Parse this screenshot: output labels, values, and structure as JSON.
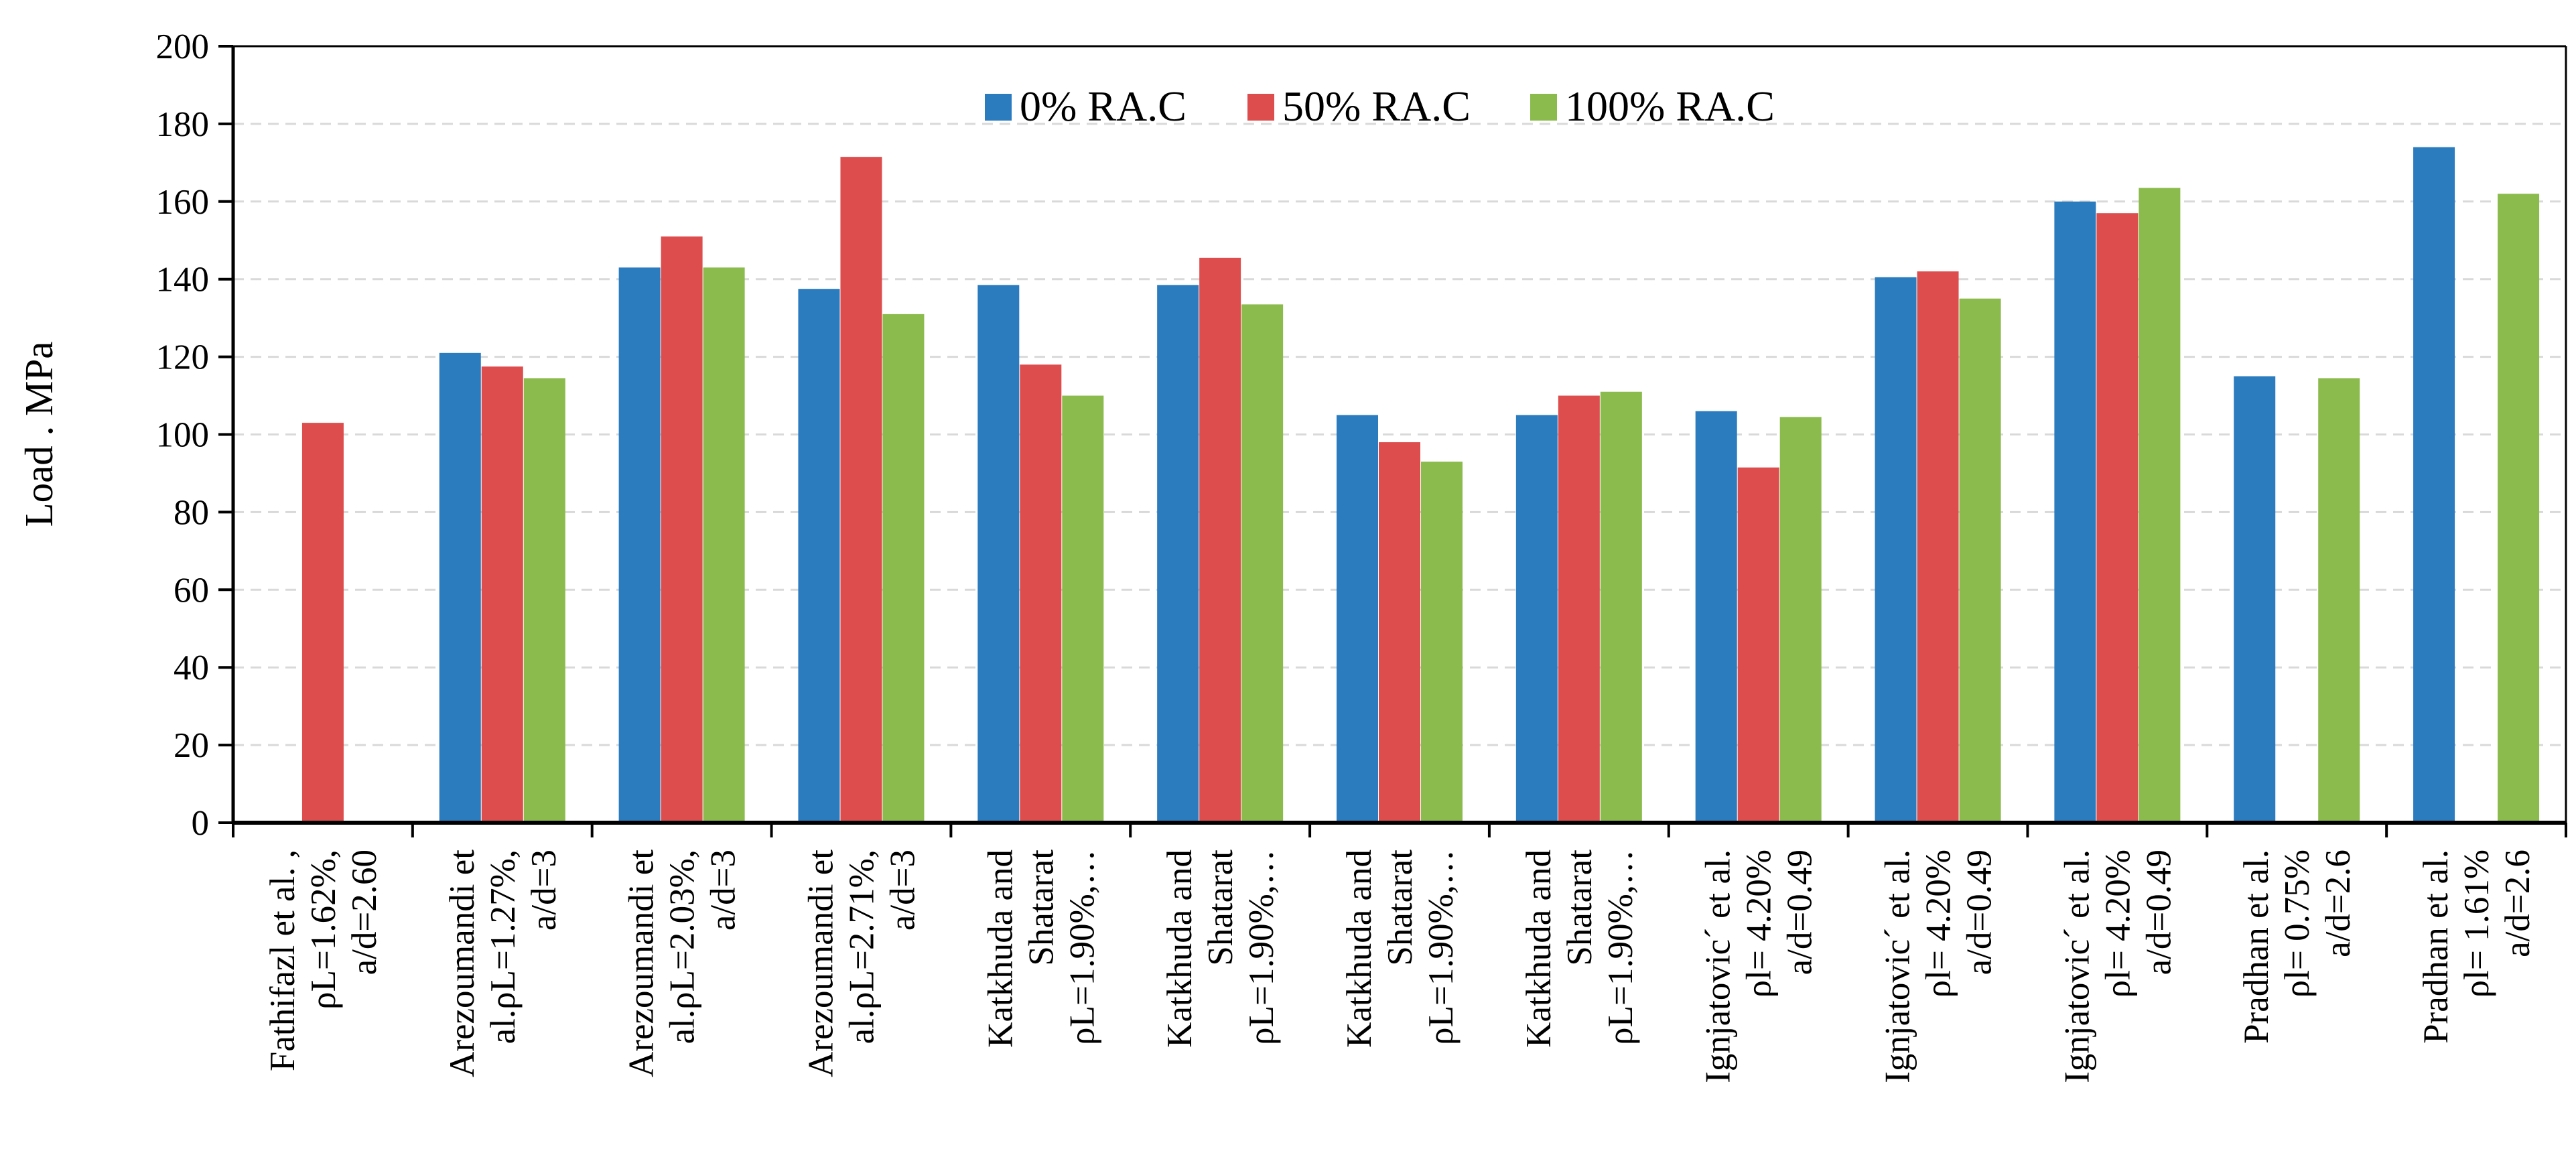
{
  "chart_data": {
    "type": "bar",
    "title": "",
    "xlabel": "",
    "ylabel": "Load . MPa",
    "ylim": [
      0,
      200
    ],
    "yticks": [
      0,
      20,
      40,
      60,
      80,
      100,
      120,
      140,
      160,
      180,
      200
    ],
    "grid": true,
    "legend_position": "top-center",
    "categories": [
      [
        "Fathifazl et al. ,",
        "ρL=1.62%,",
        "a/d=2.60"
      ],
      [
        "Arezoumandi et",
        "al.ρL=1.27%,",
        "a/d=3"
      ],
      [
        "Arezoumandi et",
        "al.ρL=2.03%,",
        "a/d=3"
      ],
      [
        "Arezoumandi et",
        "al.ρL=2.71%,",
        "a/d=3"
      ],
      [
        "Katkhuda and",
        "Shatarat",
        "ρL=1.90%,…"
      ],
      [
        "Katkhuda and",
        "Shatarat",
        "ρL=1.90%,…"
      ],
      [
        "Katkhuda and",
        "Shatarat",
        "ρL=1.90%,…"
      ],
      [
        "Katkhuda and",
        "Shatarat",
        "ρL=1.90%,…"
      ],
      [
        "Ignjatovic´ et al.",
        "ρl= 4.20%",
        "a/d=0.49"
      ],
      [
        "Ignjatovic´ et al.",
        "ρl= 4.20%",
        "a/d=0.49"
      ],
      [
        "Ignjatovic´ et al.",
        "ρl= 4.20%",
        "a/d=0.49"
      ],
      [
        "Pradhan et al.",
        "ρl= 0.75%",
        "a/d=2.6"
      ],
      [
        "Pradhan et al.",
        "ρl= 1.61%",
        "a/d=2.6"
      ]
    ],
    "series": [
      {
        "name": "0% RA.C",
        "color": "#2B7BBF",
        "values": [
          null,
          121,
          143,
          137.5,
          138.5,
          138.5,
          105,
          105,
          106,
          140.5,
          160,
          115,
          174
        ]
      },
      {
        "name": "50% RA.C",
        "color": "#DE4D4D",
        "values": [
          103,
          117.5,
          151,
          171.5,
          118,
          145.5,
          98,
          110,
          91.5,
          142,
          157,
          null,
          null
        ]
      },
      {
        "name": "100% RA.C",
        "color": "#8BBB4C",
        "values": [
          null,
          114.5,
          143,
          131,
          110,
          133.5,
          93,
          111,
          104.5,
          135,
          163.5,
          114.5,
          162
        ]
      }
    ]
  }
}
